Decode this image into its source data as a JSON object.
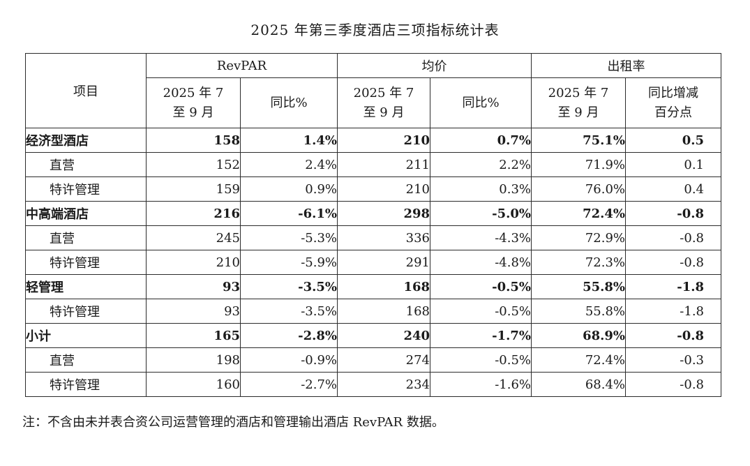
{
  "title": "2025 年第三季度酒店三项指标统计表",
  "colors": {
    "ink": "#1a1a1a",
    "border": "#2b2b2b",
    "background": "#ffffff"
  },
  "table": {
    "corner_header": "项目",
    "col_groups": [
      {
        "label": "RevPAR"
      },
      {
        "label": "均价"
      },
      {
        "label": "出租率"
      }
    ],
    "sub_headers": [
      "2025 年 7\n至 9 月",
      "同比%",
      "2025 年 7\n至 9 月",
      "同比%",
      "2025 年 7\n至 9 月",
      "同比增减\n百分点"
    ],
    "rows": [
      {
        "label": "经济型酒店",
        "bold": true,
        "indent": false,
        "values": [
          "158",
          "1.4%",
          "210",
          "0.7%",
          "75.1%",
          "0.5"
        ]
      },
      {
        "label": "直营",
        "bold": false,
        "indent": true,
        "values": [
          "152",
          "2.4%",
          "211",
          "2.2%",
          "71.9%",
          "0.1"
        ]
      },
      {
        "label": "特许管理",
        "bold": false,
        "indent": true,
        "values": [
          "159",
          "0.9%",
          "210",
          "0.3%",
          "76.0%",
          "0.4"
        ]
      },
      {
        "label": "中高端酒店",
        "bold": true,
        "indent": false,
        "values": [
          "216",
          "-6.1%",
          "298",
          "-5.0%",
          "72.4%",
          "-0.8"
        ]
      },
      {
        "label": "直营",
        "bold": false,
        "indent": true,
        "values": [
          "245",
          "-5.3%",
          "336",
          "-4.3%",
          "72.9%",
          "-0.8"
        ]
      },
      {
        "label": "特许管理",
        "bold": false,
        "indent": true,
        "values": [
          "210",
          "-5.9%",
          "291",
          "-4.8%",
          "72.3%",
          "-0.8"
        ]
      },
      {
        "label": "轻管理",
        "bold": true,
        "indent": false,
        "values": [
          "93",
          "-3.5%",
          "168",
          "-0.5%",
          "55.8%",
          "-1.8"
        ]
      },
      {
        "label": "特许管理",
        "bold": false,
        "indent": true,
        "values": [
          "93",
          "-3.5%",
          "168",
          "-0.5%",
          "55.8%",
          "-1.8"
        ]
      },
      {
        "label": "小计",
        "bold": true,
        "indent": false,
        "values": [
          "165",
          "-2.8%",
          "240",
          "-1.7%",
          "68.9%",
          "-0.8"
        ]
      },
      {
        "label": "直营",
        "bold": false,
        "indent": true,
        "values": [
          "198",
          "-0.9%",
          "274",
          "-0.5%",
          "72.4%",
          "-0.3"
        ]
      },
      {
        "label": "特许管理",
        "bold": false,
        "indent": true,
        "values": [
          "160",
          "-2.7%",
          "234",
          "-1.6%",
          "68.4%",
          "-0.8"
        ]
      }
    ]
  },
  "footnote": "注：不含由未并表合资公司运营管理的酒店和管理输出酒店 RevPAR 数据。"
}
